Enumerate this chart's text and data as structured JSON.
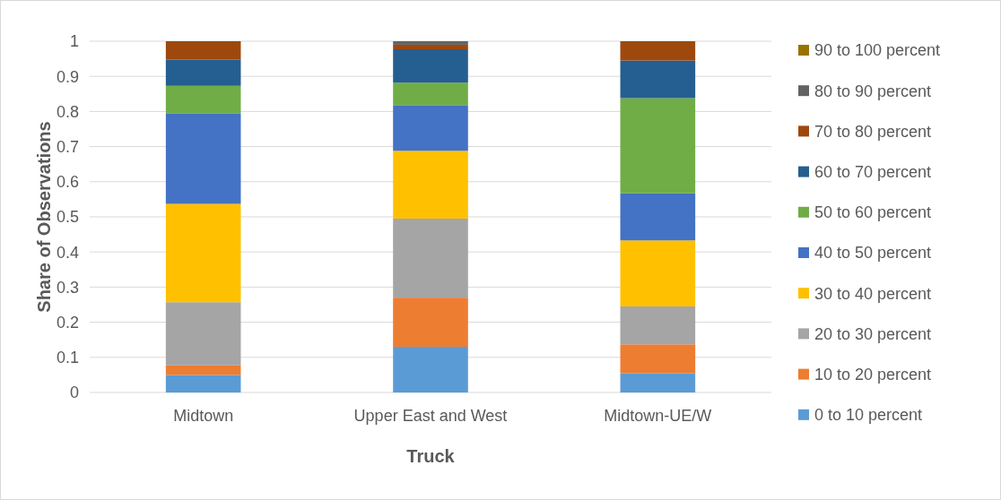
{
  "chart_data": {
    "type": "bar",
    "stacked": true,
    "xlabel": "Truck",
    "ylabel": "Share of Observations",
    "categories": [
      "Midtown",
      "Upper East and West",
      "Midtown-UE/W"
    ],
    "series": [
      {
        "name": "0 to 10 percent",
        "color": "#5b9bd5",
        "values": [
          0.05,
          0.13,
          0.055
        ]
      },
      {
        "name": "10 to 20 percent",
        "color": "#ed7d31",
        "values": [
          0.027,
          0.14,
          0.082
        ]
      },
      {
        "name": "20 to 30 percent",
        "color": "#a5a5a5",
        "values": [
          0.18,
          0.225,
          0.108
        ]
      },
      {
        "name": "30 to 40 percent",
        "color": "#ffc000",
        "values": [
          0.28,
          0.193,
          0.188
        ]
      },
      {
        "name": "40 to 50 percent",
        "color": "#4472c4",
        "values": [
          0.258,
          0.13,
          0.134
        ]
      },
      {
        "name": "50 to 60 percent",
        "color": "#70ad47",
        "values": [
          0.078,
          0.064,
          0.271
        ]
      },
      {
        "name": "60 to 70 percent",
        "color": "#255e91",
        "values": [
          0.075,
          0.095,
          0.107
        ]
      },
      {
        "name": "70 to 80 percent",
        "color": "#9e480e",
        "values": [
          0.052,
          0.013,
          0.055
        ]
      },
      {
        "name": "80 to 90 percent",
        "color": "#636363",
        "values": [
          0,
          0.01,
          0
        ]
      },
      {
        "name": "90 to 100 percent",
        "color": "#997300",
        "values": [
          0,
          0,
          0
        ]
      }
    ],
    "ylim": [
      0,
      1
    ],
    "yticks": [
      0,
      0.1,
      0.2,
      0.3,
      0.4,
      0.5,
      0.6,
      0.7,
      0.8,
      0.9,
      1
    ],
    "grid": "y",
    "legend": "right"
  }
}
